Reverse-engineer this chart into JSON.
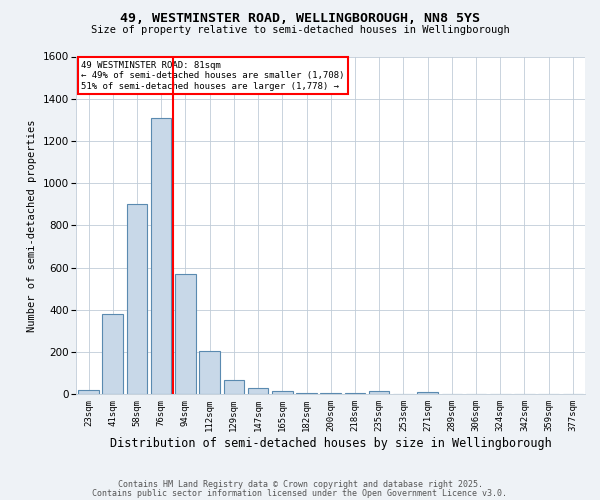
{
  "title": "49, WESTMINSTER ROAD, WELLINGBOROUGH, NN8 5YS",
  "subtitle": "Size of property relative to semi-detached houses in Wellingborough",
  "xlabel": "Distribution of semi-detached houses by size in Wellingborough",
  "ylabel": "Number of semi-detached properties",
  "bin_labels": [
    "23sqm",
    "41sqm",
    "58sqm",
    "76sqm",
    "94sqm",
    "112sqm",
    "129sqm",
    "147sqm",
    "165sqm",
    "182sqm",
    "200sqm",
    "218sqm",
    "235sqm",
    "253sqm",
    "271sqm",
    "289sqm",
    "306sqm",
    "324sqm",
    "342sqm",
    "359sqm",
    "377sqm"
  ],
  "bin_values": [
    20,
    380,
    900,
    1310,
    570,
    205,
    70,
    30,
    15,
    5,
    5,
    5,
    15,
    0,
    10,
    0,
    0,
    0,
    0,
    0,
    0
  ],
  "bar_color": "#c8d8e8",
  "bar_edge_color": "#5a8ab0",
  "red_line_bar_index": 4,
  "annotation_text_line1": "49 WESTMINSTER ROAD: 81sqm",
  "annotation_text_line2": "← 49% of semi-detached houses are smaller (1,708)",
  "annotation_text_line3": "51% of semi-detached houses are larger (1,778) →",
  "ylim": [
    0,
    1600
  ],
  "yticks": [
    0,
    200,
    400,
    600,
    800,
    1000,
    1200,
    1400,
    1600
  ],
  "footnote1": "Contains HM Land Registry data © Crown copyright and database right 2025.",
  "footnote2": "Contains public sector information licensed under the Open Government Licence v3.0.",
  "bg_color": "#eef2f6",
  "plot_bg_color": "#ffffff",
  "grid_color": "#c0ccd8"
}
